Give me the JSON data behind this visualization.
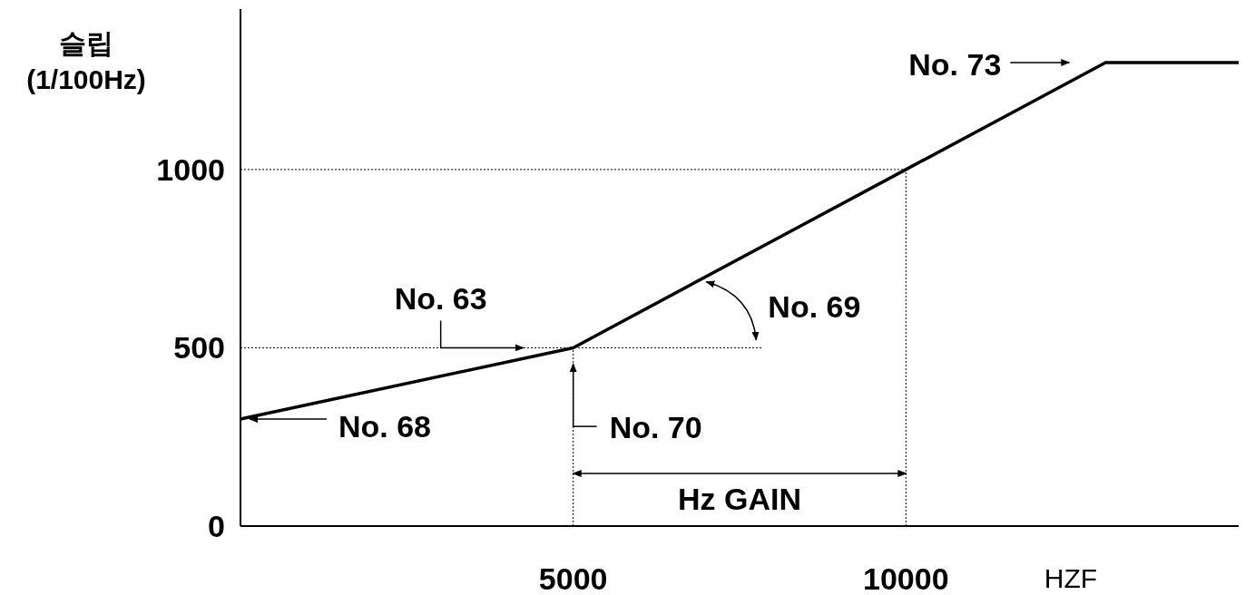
{
  "chart_data": {
    "type": "line",
    "xlabel": "HZF",
    "ylabel": "슬립\n(1/100Hz)",
    "x": [
      0,
      5000,
      10000,
      13000,
      15000
    ],
    "series": [
      {
        "color": "#000000",
        "values": [
          300,
          500,
          1000,
          1300,
          1300
        ]
      }
    ],
    "xlim": [
      0,
      15000
    ],
    "ylim": [
      0,
      1450
    ],
    "xticks": [
      5000,
      10000
    ],
    "yticks": [
      0,
      500,
      1000
    ],
    "grid": false,
    "marker": "none",
    "line_style": "solid",
    "ref_lines": [
      {
        "axis": "y",
        "value": 500,
        "line_style": "dotted",
        "color": "#000000"
      },
      {
        "axis": "y",
        "value": 1000,
        "line_style": "dotted",
        "color": "#000000"
      },
      {
        "axis": "x",
        "value": 5000,
        "line_style": "dotted",
        "color": "#000000"
      },
      {
        "axis": "x",
        "value": 10000,
        "line_style": "dotted",
        "color": "#000000"
      }
    ],
    "annotations": [
      "No. 73",
      {
        "text": "No. 63",
        "x": 4250,
        "y": 500
      },
      "No. 69",
      {
        "text": "No. 70",
        "x": 5000,
        "y": 455
      },
      "No. 68",
      "Hz GAIN"
    ]
  }
}
